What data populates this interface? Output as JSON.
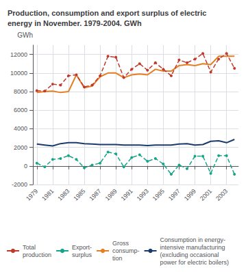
{
  "chart_data": {
    "type": "line",
    "title": "Production, consumption and export surplus of electric\nenergy in November. 1979-2004. GWh",
    "ylabel": "GWh",
    "x": [
      1979,
      1980,
      1981,
      1982,
      1983,
      1984,
      1985,
      1986,
      1987,
      1988,
      1989,
      1990,
      1991,
      1992,
      1993,
      1994,
      1995,
      1996,
      1997,
      1998,
      1999,
      2000,
      2001,
      2002,
      2003,
      2004
    ],
    "series": [
      {
        "name": "Total\nproduction",
        "color": "#c0392b",
        "line_style": "dashed",
        "marker": "circle",
        "values": [
          8100,
          8050,
          8800,
          8700,
          9700,
          9800,
          8500,
          8700,
          9700,
          11800,
          11700,
          9500,
          10400,
          11000,
          10300,
          11100,
          10400,
          9700,
          11400,
          11100,
          11500,
          12100,
          10100,
          11500,
          12100,
          10500
        ]
      },
      {
        "name": "Export-\nsurplus",
        "color": "#17a589",
        "line_style": "dashed",
        "marker": "circle",
        "values": [
          300,
          -100,
          700,
          800,
          1100,
          700,
          -200,
          100,
          300,
          1500,
          1300,
          -100,
          900,
          1200,
          500,
          800,
          200,
          -900,
          100,
          -300,
          1050,
          1050,
          -800,
          1100,
          1100,
          -900
        ]
      },
      {
        "name": "Gross\nconsump-\ntion",
        "color": "#e67e22",
        "line_style": "solid",
        "marker": "none",
        "values": [
          7900,
          8000,
          8050,
          7900,
          8000,
          9800,
          8400,
          8600,
          9600,
          10000,
          10000,
          9500,
          9800,
          9900,
          9800,
          10400,
          10200,
          10200,
          10800,
          10900,
          10800,
          11000,
          10900,
          11800,
          11800,
          11800
        ]
      },
      {
        "name": "Consumption in energy-\nintensive manufacturing\n(excluding occasional\npower for electric boilers)",
        "color": "#1a3a6b",
        "line_style": "solid",
        "marker": "none",
        "values": [
          2350,
          2250,
          2150,
          2400,
          2500,
          2500,
          2400,
          2350,
          2300,
          2300,
          2300,
          2250,
          2250,
          2250,
          2200,
          2250,
          2250,
          2250,
          2350,
          2400,
          2250,
          2300,
          2650,
          2700,
          2500,
          2850
        ]
      }
    ],
    "xlim": [
      1978.5,
      2004.5
    ],
    "xticks": [
      1979,
      1981,
      1983,
      1985,
      1987,
      1989,
      1991,
      1993,
      1995,
      1997,
      1999,
      2001,
      2003
    ],
    "ylim": [
      -2000,
      13000
    ],
    "yticks": [
      -2000,
      0,
      2000,
      4000,
      6000,
      8000,
      10000,
      12000
    ],
    "grid": true,
    "legend": "bottom"
  }
}
